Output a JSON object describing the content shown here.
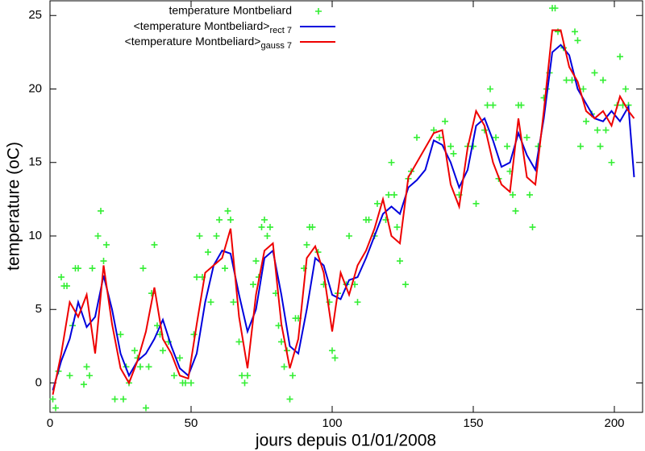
{
  "chart_data": {
    "type": "line",
    "xlabel": "jours depuis 01/01/2008",
    "ylabel": "temperature (oC)",
    "xlim": [
      0,
      210
    ],
    "ylim": [
      -2,
      26
    ],
    "xticks": [
      0,
      50,
      100,
      150,
      200
    ],
    "yticks": [
      0,
      5,
      10,
      15,
      20,
      25
    ],
    "series": [
      {
        "name": "temperature Montbeliard",
        "color": "#33ee33",
        "style": "points",
        "x": [
          1,
          2,
          3,
          4,
          5,
          6,
          7,
          8,
          9,
          10,
          12,
          13,
          14,
          15,
          17,
          18,
          19,
          20,
          23,
          25,
          26,
          27,
          28,
          30,
          31,
          32,
          33,
          34,
          35,
          36,
          37,
          38,
          39,
          40,
          42,
          44,
          46,
          47,
          48,
          50,
          51,
          52,
          53,
          54,
          56,
          57,
          59,
          60,
          62,
          63,
          64,
          65,
          67,
          68,
          69,
          70,
          72,
          73,
          74,
          75,
          76,
          77,
          78,
          80,
          81,
          82,
          83,
          84,
          85,
          86,
          87,
          88,
          90,
          91,
          92,
          93,
          95,
          97,
          99,
          100,
          101,
          102,
          105,
          106,
          108,
          109,
          112,
          113,
          115,
          116,
          119,
          120,
          121,
          122,
          123,
          124,
          126,
          127,
          128,
          130,
          136,
          138,
          140,
          142,
          143,
          145,
          148,
          150,
          151,
          154,
          155,
          156,
          157,
          158,
          159,
          162,
          163,
          164,
          165,
          166,
          167,
          169,
          170,
          171,
          173,
          175,
          176,
          177,
          178,
          179,
          180,
          182,
          183,
          185,
          186,
          187,
          188,
          189,
          190,
          192,
          193,
          194,
          195,
          196,
          197,
          199,
          201,
          202,
          203,
          204,
          205
        ],
        "values": [
          -1.1,
          -1.7,
          0.8,
          7.2,
          6.6,
          6.6,
          0.5,
          3.9,
          7.8,
          7.8,
          -0.1,
          1.1,
          0.5,
          7.8,
          10,
          11.7,
          8.3,
          9.4,
          -1.1,
          3.3,
          -1.1,
          1.1,
          0,
          2.2,
          1.7,
          1.1,
          7.8,
          -1.7,
          1.1,
          6.1,
          9.4,
          3.9,
          3.3,
          2.2,
          2.8,
          0.5,
          1.7,
          0,
          0,
          0,
          3.3,
          7.2,
          10,
          7.2,
          8.9,
          5.5,
          10,
          11.1,
          7.8,
          11.7,
          11.1,
          5.5,
          2.8,
          0.5,
          0,
          0.5,
          6.7,
          8.3,
          7.2,
          10.6,
          11.1,
          10,
          10.6,
          6.1,
          3.9,
          2.8,
          1.1,
          2.2,
          -1.1,
          0.5,
          4.4,
          4.4,
          7.8,
          9.4,
          10.6,
          10.6,
          8.9,
          6.7,
          5.5,
          2.2,
          1.7,
          6.1,
          6.7,
          10,
          6.7,
          5.5,
          11.1,
          11.1,
          10,
          12.2,
          11.1,
          12.8,
          15,
          12.8,
          10.6,
          8.3,
          6.7,
          13.9,
          14.4,
          16.7,
          17.2,
          16.7,
          17.8,
          16.1,
          15.6,
          12.8,
          16.1,
          16.1,
          12.2,
          17.2,
          18.9,
          20,
          18.9,
          16.7,
          13.9,
          16.1,
          14.4,
          12.8,
          11.7,
          18.9,
          18.9,
          16.7,
          12.8,
          10.6,
          16.1,
          19.4,
          20,
          21.1,
          25.5,
          25.5,
          23.9,
          22.8,
          20.6,
          20.6,
          23.9,
          23.3,
          16.1,
          20,
          17.8,
          18.3,
          21.1,
          17.2,
          16.1,
          20.6,
          17.2,
          15,
          18.9,
          22.2,
          18.9,
          20,
          18.9
        ]
      },
      {
        "name": "<temperature Montbeliard>",
        "subscript": "rect 7",
        "color": "#0000dd",
        "style": "line",
        "x": [
          1,
          4,
          7,
          10,
          13,
          16,
          19,
          22,
          25,
          28,
          31,
          34,
          37,
          40,
          43,
          46,
          49,
          52,
          55,
          58,
          61,
          64,
          67,
          70,
          73,
          76,
          79,
          82,
          85,
          88,
          91,
          94,
          97,
          100,
          103,
          106,
          109,
          112,
          115,
          118,
          121,
          124,
          127,
          130,
          133,
          136,
          139,
          142,
          145,
          148,
          151,
          154,
          157,
          160,
          163,
          166,
          169,
          172,
          175,
          178,
          181,
          184,
          187,
          190,
          193,
          196,
          199,
          202,
          205,
          207
        ],
        "values": [
          -0.5,
          1.5,
          3,
          5.5,
          3.8,
          4.5,
          7.3,
          5,
          2,
          0.5,
          1.5,
          2,
          3,
          4.3,
          2.5,
          1,
          0.5,
          2,
          5.5,
          8,
          9,
          8.8,
          6,
          3.5,
          5,
          8.5,
          9,
          6,
          2.5,
          2,
          5,
          8.5,
          8,
          6,
          5.7,
          7,
          7.2,
          8.5,
          10,
          11.5,
          12,
          11.5,
          13.3,
          13.8,
          14.5,
          16.5,
          16.2,
          15,
          13.3,
          14.5,
          17.5,
          18,
          16.5,
          14.7,
          15,
          17,
          15.5,
          14.5,
          18,
          22.5,
          23,
          22.3,
          20,
          19,
          18,
          17.8,
          18.5,
          17.8,
          18.8,
          14
        ]
      },
      {
        "name": "<temperature Montbeliard>",
        "subscript": "gauss 7",
        "color": "#ee0000",
        "style": "line",
        "x": [
          1,
          4,
          7,
          10,
          13,
          16,
          19,
          22,
          25,
          28,
          31,
          34,
          37,
          40,
          43,
          46,
          49,
          52,
          55,
          58,
          61,
          64,
          67,
          70,
          73,
          76,
          79,
          82,
          85,
          88,
          91,
          94,
          97,
          100,
          103,
          106,
          109,
          112,
          115,
          118,
          121,
          124,
          127,
          130,
          133,
          136,
          139,
          142,
          145,
          148,
          151,
          154,
          157,
          160,
          163,
          166,
          169,
          172,
          175,
          178,
          181,
          184,
          187,
          190,
          193,
          196,
          199,
          202,
          205,
          207
        ],
        "values": [
          -0.8,
          2,
          5.5,
          4.5,
          6,
          2,
          8,
          4,
          1,
          0,
          1.5,
          3.5,
          6.5,
          3,
          2,
          0.5,
          0.3,
          4,
          7.5,
          8,
          8.5,
          10.5,
          4.5,
          1,
          6,
          9,
          9.5,
          4,
          1,
          3,
          8.5,
          9.3,
          7.5,
          3.5,
          7.5,
          6,
          8,
          9,
          10.5,
          12.5,
          10,
          9.5,
          14,
          15,
          16,
          17,
          17.2,
          13.5,
          12,
          16,
          18.5,
          17.5,
          15,
          13.5,
          13,
          18,
          14,
          13.5,
          18.5,
          24,
          24,
          21.5,
          20.5,
          18.5,
          18,
          18.5,
          17.5,
          19.5,
          18.5,
          18
        ]
      }
    ]
  }
}
